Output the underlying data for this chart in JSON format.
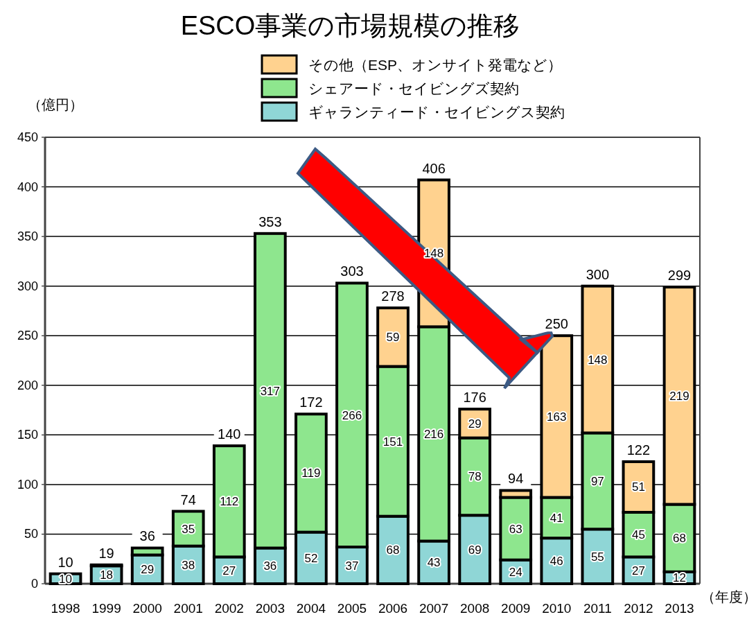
{
  "chart_data": {
    "type": "bar",
    "stacked": true,
    "title": "ESCO事業の市場規模の推移",
    "ylabel": "（億円）",
    "xlabel": "（年度）",
    "categories": [
      "1998",
      "1999",
      "2000",
      "2001",
      "2002",
      "2003",
      "2004",
      "2005",
      "2006",
      "2007",
      "2008",
      "2009",
      "2010",
      "2011",
      "2012",
      "2013"
    ],
    "series": [
      {
        "name": "ギャランティード・セイビングス契約",
        "color": "#8fd6d6",
        "values": [
          10,
          18,
          29,
          38,
          27,
          36,
          52,
          37,
          68,
          43,
          69,
          24,
          46,
          55,
          27,
          12
        ],
        "value_labels": [
          "10",
          "18",
          "29",
          "38",
          "27",
          "36",
          "52",
          "37",
          "68",
          "43",
          "69",
          "24",
          "46",
          "55",
          "27",
          "12"
        ]
      },
      {
        "name": "シェアード・セイビングズ契約",
        "color": "#8ee68e",
        "values": [
          null,
          1,
          7,
          35,
          112,
          317,
          119,
          266,
          151,
          216,
          78,
          63,
          41,
          97,
          45,
          68
        ],
        "value_labels": [
          null,
          null,
          null,
          "35",
          "112",
          "317",
          "119",
          "266",
          "151",
          "216",
          "78",
          "63",
          "41",
          "97",
          "45",
          "68"
        ]
      },
      {
        "name": "その他（ESP、オンサイト発電など）",
        "color": "#ffd28f",
        "values": [
          null,
          null,
          null,
          null,
          null,
          null,
          null,
          null,
          59,
          148,
          29,
          7,
          163,
          148,
          51,
          219
        ],
        "value_labels": [
          null,
          null,
          null,
          null,
          null,
          null,
          null,
          null,
          "59",
          "148",
          "29",
          null,
          "163",
          "148",
          "51",
          "219"
        ]
      }
    ],
    "totals": [
      "10",
      "19",
      "36",
      "74",
      "140",
      "353",
      "172",
      "303",
      "278",
      "406",
      "176",
      "94",
      "250",
      "300",
      "122",
      "299"
    ],
    "ylim": [
      0,
      450
    ],
    "yticks": [
      0,
      50,
      100,
      150,
      200,
      250,
      300,
      350,
      400,
      450
    ],
    "grid": "y",
    "legend": "top"
  }
}
